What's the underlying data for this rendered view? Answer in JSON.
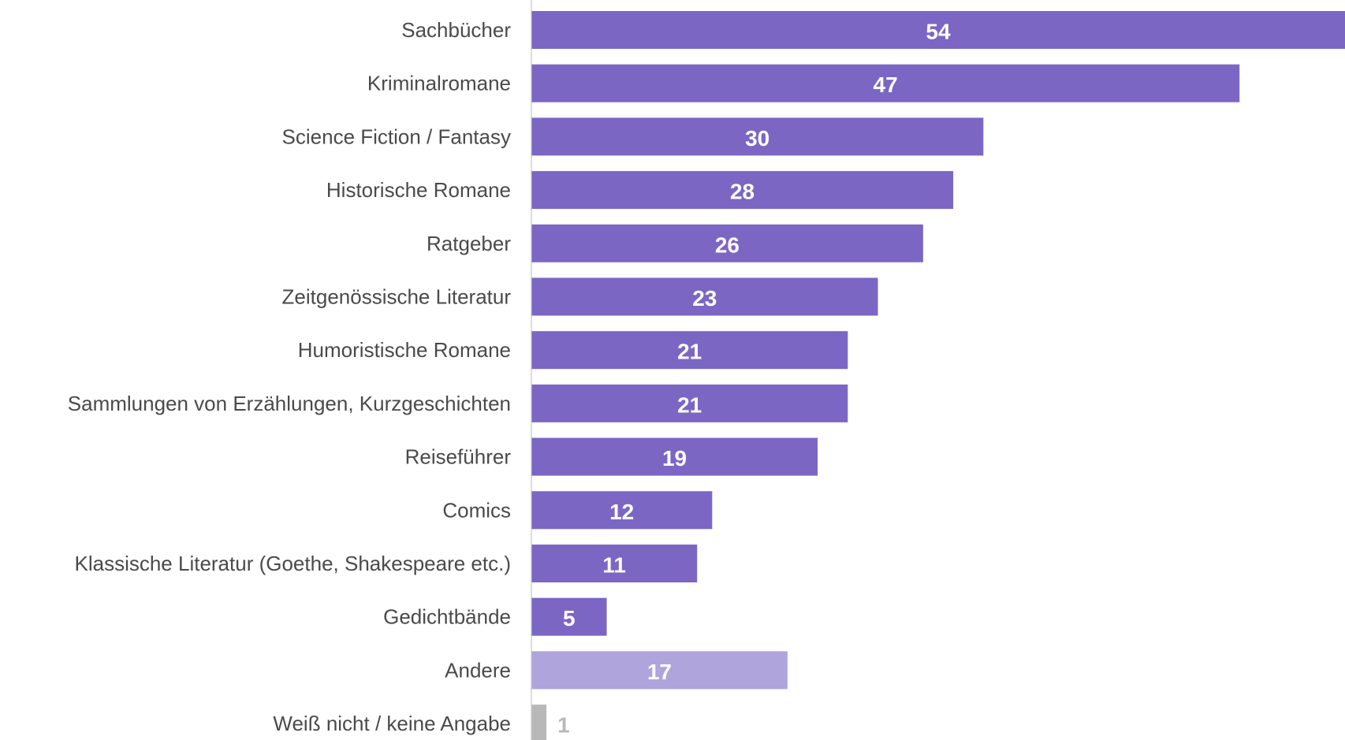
{
  "chart_data": {
    "type": "bar",
    "orientation": "horizontal",
    "title": "",
    "xlabel": "",
    "ylabel": "",
    "grid": false,
    "legend": "none",
    "xlim": [
      0,
      54
    ],
    "categories": [
      "Sachbücher",
      "Kriminalromane",
      "Science Fiction / Fantasy",
      "Historische Romane",
      "Ratgeber",
      "Zeitgenössische Literatur",
      "Humoristische Romane",
      "Sammlungen von Erzählungen, Kurzgeschichten",
      "Reiseführer",
      "Comics",
      "Klassische Literatur (Goethe, Shakespeare etc.)",
      "Gedichtbände",
      "Andere",
      "Weiß nicht / keine Angabe"
    ],
    "values": [
      54,
      47,
      30,
      28,
      26,
      23,
      21,
      21,
      19,
      12,
      11,
      5,
      17,
      1
    ],
    "value_labels": [
      "54",
      "47",
      "30",
      "28",
      "26",
      "23",
      "21",
      "21",
      "19",
      "12",
      "11",
      "5",
      "17",
      "1"
    ],
    "bar_colors": [
      "#7b66c4",
      "#7b66c4",
      "#7b66c4",
      "#7b66c4",
      "#7b66c4",
      "#7b66c4",
      "#7b66c4",
      "#7b66c4",
      "#7b66c4",
      "#7b66c4",
      "#7b66c4",
      "#7b66c4",
      "#b0a4dc",
      "#b8b8b8"
    ],
    "label_colors": [
      "#ffffff",
      "#ffffff",
      "#ffffff",
      "#ffffff",
      "#ffffff",
      "#ffffff",
      "#ffffff",
      "#ffffff",
      "#ffffff",
      "#ffffff",
      "#ffffff",
      "#ffffff",
      "#ffffff",
      "#b8b8b8"
    ],
    "axis_color": "#d0d0d0",
    "category_label_color": "#4a4a4a"
  }
}
